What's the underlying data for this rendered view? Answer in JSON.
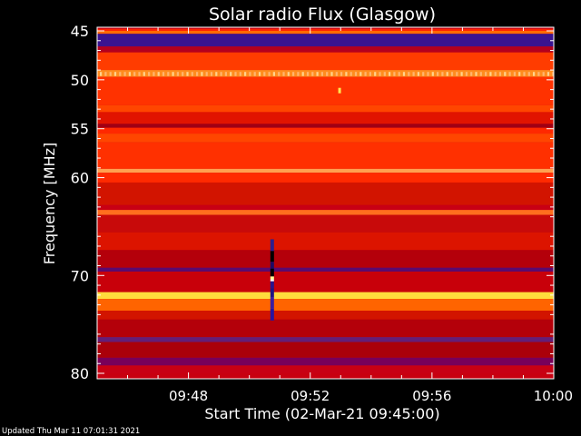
{
  "chart_data": {
    "type": "heatmap",
    "title": "Solar radio Flux (Glasgow)",
    "xlabel": "Start Time (02-Mar-21 09:45:00)",
    "ylabel": "Frequency [MHz]",
    "x_range": [
      "09:45",
      "10:00"
    ],
    "y_range_mhz": [
      45,
      80
    ],
    "y_inverted": true,
    "x_ticks": [
      {
        "label": "09:48",
        "minutes": 3
      },
      {
        "label": "09:52",
        "minutes": 7
      },
      {
        "label": "09:56",
        "minutes": 11
      },
      {
        "label": "10:00",
        "minutes": 15
      }
    ],
    "y_ticks": [
      {
        "label": "45",
        "mhz": 45
      },
      {
        "label": "50",
        "mhz": 50
      },
      {
        "label": "55",
        "mhz": 55
      },
      {
        "label": "60",
        "mhz": 60
      },
      {
        "label": "70",
        "mhz": 70
      },
      {
        "label": "80",
        "mhz": 80
      }
    ],
    "spectral_bands": [
      {
        "from": 44.8,
        "to": 45.0,
        "color": "#ff2200"
      },
      {
        "from": 45.0,
        "to": 45.3,
        "color": "#ff6a00"
      },
      {
        "from": 45.3,
        "to": 46.6,
        "color": "#3a1390"
      },
      {
        "from": 46.6,
        "to": 47.2,
        "color": "#b4001e"
      },
      {
        "from": 47.2,
        "to": 49.0,
        "color": "#ff3c00"
      },
      {
        "from": 49.0,
        "to": 49.7,
        "color": "#ff8c1e"
      },
      {
        "from": 49.7,
        "to": 52.6,
        "color": "#ff3200"
      },
      {
        "from": 52.6,
        "to": 53.3,
        "color": "#ff4600"
      },
      {
        "from": 53.3,
        "to": 54.5,
        "color": "#e11400"
      },
      {
        "from": 54.5,
        "to": 54.9,
        "color": "#a00014"
      },
      {
        "from": 54.9,
        "to": 55.5,
        "color": "#ff2800"
      },
      {
        "from": 55.5,
        "to": 56.4,
        "color": "#ff4600"
      },
      {
        "from": 56.4,
        "to": 59.1,
        "color": "#ff3000"
      },
      {
        "from": 59.1,
        "to": 59.5,
        "color": "#ffa050"
      },
      {
        "from": 59.5,
        "to": 60.5,
        "color": "#ff2a00"
      },
      {
        "from": 60.5,
        "to": 62.8,
        "color": "#d21400"
      },
      {
        "from": 62.8,
        "to": 63.3,
        "color": "#c80014"
      },
      {
        "from": 63.3,
        "to": 63.8,
        "color": "#ff6e1e"
      },
      {
        "from": 63.8,
        "to": 65.6,
        "color": "#c80a0a"
      },
      {
        "from": 65.6,
        "to": 67.4,
        "color": "#dc1400"
      },
      {
        "from": 67.4,
        "to": 69.2,
        "color": "#b4000a"
      },
      {
        "from": 69.2,
        "to": 69.6,
        "color": "#5a0a6e"
      },
      {
        "from": 69.6,
        "to": 71.7,
        "color": "#c8000a"
      },
      {
        "from": 71.7,
        "to": 72.4,
        "color": "#ffdc3c"
      },
      {
        "from": 72.4,
        "to": 73.6,
        "color": "#ff6400"
      },
      {
        "from": 73.6,
        "to": 74.5,
        "color": "#d21400"
      },
      {
        "from": 74.5,
        "to": 76.3,
        "color": "#b4000a"
      },
      {
        "from": 76.3,
        "to": 76.8,
        "color": "#641e78"
      },
      {
        "from": 76.8,
        "to": 78.4,
        "color": "#aa000a"
      },
      {
        "from": 78.4,
        "to": 79.2,
        "color": "#78005a"
      },
      {
        "from": 79.2,
        "to": 80.0,
        "color": "#c80014"
      }
    ],
    "burst_feature": {
      "time_minutes": 5.75,
      "segments": [
        {
          "from": 66.3,
          "to": 67.5,
          "color": "#2e1e8c"
        },
        {
          "from": 67.5,
          "to": 68.6,
          "color": "#000000"
        },
        {
          "from": 68.6,
          "to": 69.3,
          "color": "#1e0a64"
        },
        {
          "from": 69.3,
          "to": 70.1,
          "color": "#000000"
        },
        {
          "from": 70.1,
          "to": 70.4,
          "color": "#ffff96"
        },
        {
          "from": 70.4,
          "to": 70.6,
          "color": "#ffffff"
        },
        {
          "from": 70.6,
          "to": 71.3,
          "color": "#28148c"
        },
        {
          "from": 71.3,
          "to": 72.2,
          "color": "#1e1482"
        },
        {
          "from": 72.2,
          "to": 73.4,
          "color": "#3c1ea0"
        },
        {
          "from": 73.4,
          "to": 74.6,
          "color": "#2814a0"
        }
      ]
    },
    "spot_feature": {
      "time_minutes": 7.95,
      "mhz": 51.1,
      "color": "#ffe650"
    },
    "grid": false,
    "colormap": "hot"
  },
  "footer": {
    "updated": "Updated Thu Mar 11 07:01:31 2021"
  }
}
